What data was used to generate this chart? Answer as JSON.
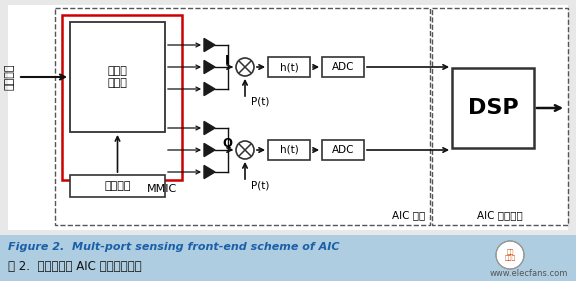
{
  "title_en": "Figure 2.  Mult-port sensing front-end scheme of AIC",
  "title_cn": "图 2.  多端口传感 AIC 前端结构框图",
  "bg_color": "#f0f0f0",
  "diagram_bg": "#ffffff",
  "caption_bg": "#aecde0",
  "caption_en_color": "#1a5fa8",
  "caption_cn_color": "#111111",
  "box_color": "#333333",
  "red_box_color": "#cc0000",
  "dashed_color": "#555555",
  "arrow_color": "#111111",
  "label_input_cn": "射频输入",
  "label_liuduankou": "六端口\n结前端",
  "label_MMIC": "MMIC",
  "label_cankao": "参考载波",
  "label_I": "I",
  "label_Q": "Q",
  "label_Pt": "P(t)",
  "label_ht": "h(t)",
  "label_ADC": "ADC",
  "label_DSP": "DSP",
  "label_AIC_front": "AIC 前端",
  "label_AIC_demod": "AIC 信息解调",
  "watermark": "www.elecfans.com"
}
